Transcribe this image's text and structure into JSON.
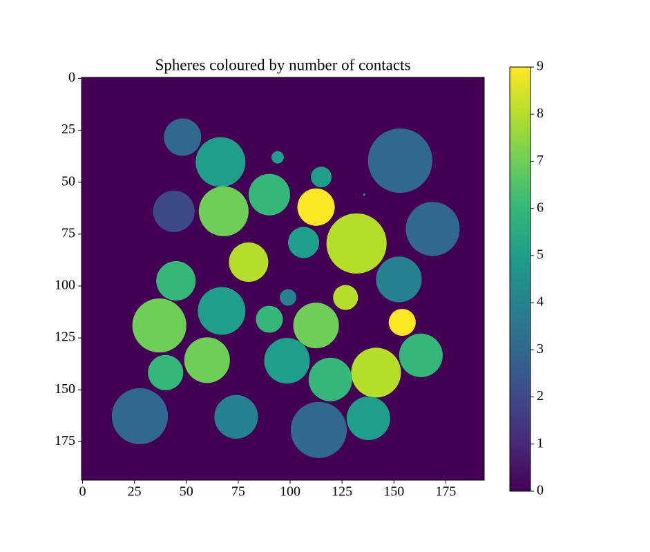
{
  "chart_data": {
    "type": "image",
    "title": "Spheres coloured by number of contacts",
    "colormap": "viridis",
    "background": 0,
    "xlim": [
      -0.5,
      193.5
    ],
    "ylim": [
      193.5,
      -0.5
    ],
    "xticks": [
      0,
      25,
      50,
      75,
      100,
      125,
      150,
      175
    ],
    "yticks": [
      0,
      25,
      50,
      75,
      100,
      125,
      150,
      175
    ],
    "clim": [
      0,
      9
    ],
    "cticks": [
      0,
      1,
      2,
      3,
      4,
      5,
      6,
      7,
      8,
      9
    ],
    "circles": [
      {
        "x": 48.2,
        "y": 28.3,
        "r": 9,
        "value": 3
      },
      {
        "x": 66.5,
        "y": 40.3,
        "r": 12,
        "value": 5
      },
      {
        "x": 94,
        "y": 38,
        "r": 3,
        "value": 5
      },
      {
        "x": 115,
        "y": 47.5,
        "r": 5,
        "value": 5
      },
      {
        "x": 153,
        "y": 39.6,
        "r": 15.5,
        "value": 3
      },
      {
        "x": 90,
        "y": 56,
        "r": 10,
        "value": 6
      },
      {
        "x": 44,
        "y": 64,
        "r": 10,
        "value": 2
      },
      {
        "x": 68,
        "y": 64,
        "r": 12,
        "value": 7
      },
      {
        "x": 112.5,
        "y": 62,
        "r": 9,
        "value": 9
      },
      {
        "x": 168.7,
        "y": 72.5,
        "r": 13,
        "value": 3
      },
      {
        "x": 106.5,
        "y": 79,
        "r": 7.5,
        "value": 5
      },
      {
        "x": 132,
        "y": 79.5,
        "r": 14.5,
        "value": 8
      },
      {
        "x": 80,
        "y": 88.5,
        "r": 9.5,
        "value": 8
      },
      {
        "x": 152.4,
        "y": 96.8,
        "r": 11,
        "value": 4
      },
      {
        "x": 45,
        "y": 97.5,
        "r": 9.5,
        "value": 6
      },
      {
        "x": 99,
        "y": 105.5,
        "r": 4,
        "value": 4
      },
      {
        "x": 126.7,
        "y": 105.5,
        "r": 6,
        "value": 8
      },
      {
        "x": 67,
        "y": 112,
        "r": 11.5,
        "value": 5
      },
      {
        "x": 37,
        "y": 119,
        "r": 13,
        "value": 7
      },
      {
        "x": 90,
        "y": 116,
        "r": 6.5,
        "value": 6
      },
      {
        "x": 112.5,
        "y": 119,
        "r": 11,
        "value": 7
      },
      {
        "x": 154,
        "y": 117.5,
        "r": 6.5,
        "value": 9
      },
      {
        "x": 60,
        "y": 135.7,
        "r": 11,
        "value": 7
      },
      {
        "x": 98.5,
        "y": 136,
        "r": 11,
        "value": 5
      },
      {
        "x": 163,
        "y": 133.4,
        "r": 10.5,
        "value": 6
      },
      {
        "x": 40,
        "y": 141.7,
        "r": 8.5,
        "value": 6
      },
      {
        "x": 141.4,
        "y": 141.7,
        "r": 12,
        "value": 8
      },
      {
        "x": 119.4,
        "y": 145,
        "r": 10.5,
        "value": 6
      },
      {
        "x": 27.6,
        "y": 162.7,
        "r": 13.5,
        "value": 3
      },
      {
        "x": 74,
        "y": 163,
        "r": 10.5,
        "value": 4
      },
      {
        "x": 137.7,
        "y": 163.7,
        "r": 10.5,
        "value": 5
      },
      {
        "x": 113.8,
        "y": 169.3,
        "r": 13.5,
        "value": 3
      },
      {
        "x": 135.7,
        "y": 56,
        "r": 0.6,
        "value": 4
      }
    ]
  }
}
